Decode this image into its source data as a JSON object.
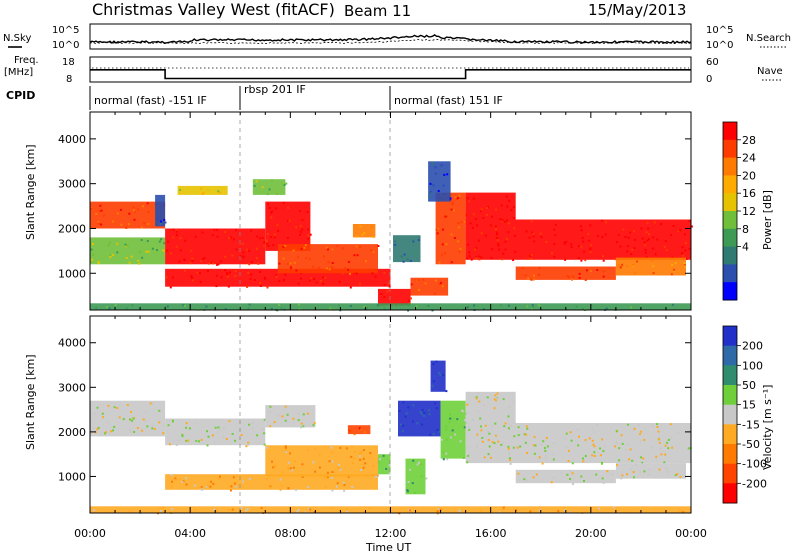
{
  "header": {
    "station": "Christmas Valley West (fitACF)",
    "beam": "Beam 11",
    "date": "15/May/2013"
  },
  "noise_panel": {
    "left_label": "N.Sky",
    "left_ticks": [
      "10^5",
      "10^0"
    ],
    "right_label": "N.Search",
    "right_ticks": [
      "10^5",
      "10^0"
    ]
  },
  "freq_panel": {
    "left_label_1": "Freq.",
    "left_label_2": "[MHz]",
    "left_ticks": [
      "18",
      "8"
    ],
    "right_label": "Nave",
    "right_ticks": [
      "60",
      "0"
    ],
    "freq_breaks_hours": [
      0,
      3.0,
      15.0,
      24
    ],
    "freq_mhz": [
      12.9,
      9.4,
      12.9
    ]
  },
  "cpid": {
    "label": "CPID",
    "segments": [
      {
        "label": "normal (fast) -151 IF",
        "start_hour": 0,
        "end_hour": 6
      },
      {
        "label": "rbsp 201 IF",
        "start_hour": 6,
        "end_hour": 12
      },
      {
        "label": "normal (fast) 151 IF",
        "start_hour": 12,
        "end_hour": 24
      }
    ]
  },
  "chart_data": [
    {
      "type": "heatmap",
      "title": "",
      "xlabel": "Time UT",
      "ylabel": "Slant Range [km]",
      "xlim_hours": [
        0,
        24
      ],
      "ylim_km": [
        180,
        4600
      ],
      "x_ticks": [
        "00:00",
        "04:00",
        "08:00",
        "12:00",
        "16:00",
        "20:00",
        "00:00"
      ],
      "y_ticks": [
        "1000",
        "2000",
        "3000",
        "4000"
      ],
      "colorbar": {
        "label": "Power [dB]",
        "ticks": [
          "28",
          "24",
          "20",
          "16",
          "12",
          "8",
          "4"
        ],
        "colors": [
          "#ff0000",
          "#ff3c00",
          "#ff7a00",
          "#ffaa00",
          "#e6c300",
          "#6fbf3a",
          "#3c9a55",
          "#2f7a72",
          "#2a4fae",
          "#0000ff"
        ]
      },
      "regions": [
        {
          "t0": 0.0,
          "t1": 3.0,
          "r0": 2000,
          "r1": 2600,
          "c": 1
        },
        {
          "t0": 0.0,
          "t1": 3.0,
          "r0": 1200,
          "r1": 1800,
          "c": 5
        },
        {
          "t0": 2.6,
          "t1": 3.0,
          "r0": 2050,
          "r1": 2750,
          "c": 8
        },
        {
          "t0": 3.0,
          "t1": 7.0,
          "r0": 1200,
          "r1": 2000,
          "c": 0
        },
        {
          "t0": 7.0,
          "t1": 8.8,
          "r0": 1500,
          "r1": 2600,
          "c": 0
        },
        {
          "t0": 3.0,
          "t1": 12.0,
          "r0": 700,
          "r1": 1100,
          "c": 0
        },
        {
          "t0": 7.5,
          "t1": 11.5,
          "r0": 1000,
          "r1": 1650,
          "c": 1
        },
        {
          "t0": 3.5,
          "t1": 5.5,
          "r0": 2750,
          "r1": 2950,
          "c": 4
        },
        {
          "t0": 6.5,
          "t1": 7.8,
          "r0": 2750,
          "r1": 3100,
          "c": 5
        },
        {
          "t0": 10.5,
          "t1": 11.4,
          "r0": 1800,
          "r1": 2100,
          "c": 2
        },
        {
          "t0": 11.5,
          "t1": 12.8,
          "r0": 280,
          "r1": 650,
          "c": 0
        },
        {
          "t0": 12.8,
          "t1": 14.3,
          "r0": 500,
          "r1": 900,
          "c": 1
        },
        {
          "t0": 12.1,
          "t1": 13.2,
          "r0": 1250,
          "r1": 1850,
          "c": 7
        },
        {
          "t0": 13.8,
          "t1": 15.0,
          "r0": 1200,
          "r1": 2800,
          "c": 1
        },
        {
          "t0": 15.0,
          "t1": 24.0,
          "r0": 1300,
          "r1": 2200,
          "c": 0
        },
        {
          "t0": 15.0,
          "t1": 17.0,
          "r0": 2200,
          "r1": 2800,
          "c": 0
        },
        {
          "t0": 17.0,
          "t1": 21.0,
          "r0": 850,
          "r1": 1150,
          "c": 1
        },
        {
          "t0": 21.0,
          "t1": 23.8,
          "r0": 950,
          "r1": 1350,
          "c": 2
        },
        {
          "t0": 13.5,
          "t1": 14.4,
          "r0": 2600,
          "r1": 3500,
          "c": 8
        },
        {
          "t0": 0.0,
          "t1": 24.0,
          "r0": 190,
          "r1": 330,
          "c": 6
        }
      ]
    },
    {
      "type": "heatmap",
      "title": "",
      "xlabel": "Time UT",
      "ylabel": "Slant Range [km]",
      "xlim_hours": [
        0,
        24
      ],
      "ylim_km": [
        180,
        4600
      ],
      "x_ticks": [
        "00:00",
        "04:00",
        "08:00",
        "12:00",
        "16:00",
        "20:00",
        "00:00"
      ],
      "y_ticks": [
        "1000",
        "2000",
        "3000",
        "4000"
      ],
      "colorbar": {
        "label": "Velocity [m s⁻¹]",
        "ticks": [
          "200",
          "100",
          "50",
          "15",
          "-15",
          "-50",
          "-100",
          "-200"
        ],
        "colors": [
          "#2030c8",
          "#2e69a8",
          "#2f8c6e",
          "#6fcf3a",
          "#c8c8c8",
          "#ffaa22",
          "#ff7a00",
          "#ff4400",
          "#ff0000"
        ]
      },
      "regions": [
        {
          "t0": 0.0,
          "t1": 3.0,
          "r0": 1900,
          "r1": 2700,
          "c": 4
        },
        {
          "t0": 3.0,
          "t1": 7.0,
          "r0": 1700,
          "r1": 2300,
          "c": 4
        },
        {
          "t0": 7.0,
          "t1": 9.0,
          "r0": 2100,
          "r1": 2600,
          "c": 4
        },
        {
          "t0": 3.0,
          "t1": 11.5,
          "r0": 700,
          "r1": 1050,
          "c": 5
        },
        {
          "t0": 7.0,
          "t1": 11.5,
          "r0": 1000,
          "r1": 1700,
          "c": 5
        },
        {
          "t0": 10.3,
          "t1": 11.2,
          "r0": 1950,
          "r1": 2150,
          "c": 7
        },
        {
          "t0": 11.5,
          "t1": 12.0,
          "r0": 1050,
          "r1": 1500,
          "c": 3
        },
        {
          "t0": 12.6,
          "t1": 13.4,
          "r0": 600,
          "r1": 1400,
          "c": 3
        },
        {
          "t0": 12.3,
          "t1": 14.0,
          "r0": 1900,
          "r1": 2700,
          "c": 0
        },
        {
          "t0": 13.6,
          "t1": 14.2,
          "r0": 2900,
          "r1": 3600,
          "c": 0
        },
        {
          "t0": 14.0,
          "t1": 15.0,
          "r0": 1400,
          "r1": 2700,
          "c": 3
        },
        {
          "t0": 15.0,
          "t1": 24.0,
          "r0": 1300,
          "r1": 2200,
          "c": 4
        },
        {
          "t0": 15.0,
          "t1": 17.0,
          "r0": 2200,
          "r1": 2900,
          "c": 4
        },
        {
          "t0": 17.0,
          "t1": 21.0,
          "r0": 850,
          "r1": 1150,
          "c": 4
        },
        {
          "t0": 21.0,
          "t1": 23.8,
          "r0": 950,
          "r1": 1300,
          "c": 4
        },
        {
          "t0": 0.0,
          "t1": 24.0,
          "r0": 190,
          "r1": 330,
          "c": 5
        }
      ]
    }
  ]
}
